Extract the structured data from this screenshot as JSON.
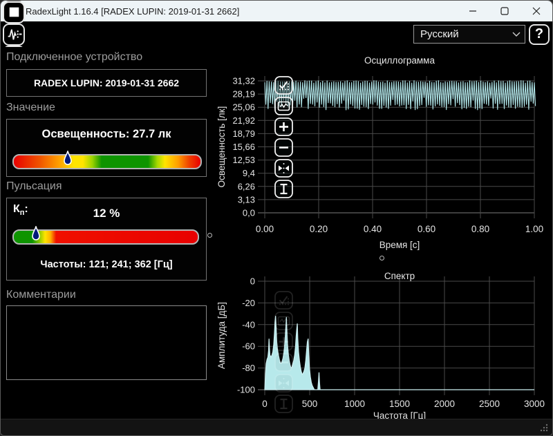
{
  "titlebar": {
    "title": "RadexLight 1.16.4 [RADEX LUPIN: 2019-01-31 2662]",
    "controls": [
      "minimize",
      "maximize",
      "close"
    ]
  },
  "toolbar": {
    "buttons": [
      {
        "name": "find-device",
        "enabled": false
      },
      {
        "name": "open-file",
        "enabled": true
      },
      {
        "name": "eject-device",
        "enabled": true
      },
      {
        "name": "save-file",
        "enabled": false
      },
      {
        "name": "stop-measure",
        "enabled": true
      },
      {
        "name": "pulse-measure",
        "enabled": true
      },
      {
        "name": "rays-mode",
        "enabled": true
      },
      {
        "name": "numeric-display",
        "enabled": true
      },
      {
        "name": "oscillogram-view",
        "enabled": true
      },
      {
        "name": "spectrum-view",
        "enabled": true
      },
      {
        "name": "layout-view",
        "enabled": true
      }
    ],
    "language_value": "Русский",
    "help_label": "?"
  },
  "left_panel": {
    "device": {
      "header": "Подключенное устройство",
      "name": "RADEX LUPIN: 2019-01-31 2662"
    },
    "value": {
      "header": "Значение",
      "reading": "Освещенность: 27.7 лк",
      "marker_pct": 29
    },
    "pulsation": {
      "header": "Пульсация",
      "kp_base": "К",
      "kp_sub": "п",
      "kp_colon": ":",
      "value": "12 %",
      "marker_pct": 12,
      "frequencies": "Частоты: 121; 241; 362 [Гц]"
    },
    "comments": {
      "header": "Комментарии",
      "text": ""
    }
  },
  "chart_tools": [
    "auto-scale",
    "fit-view",
    "zoom-in",
    "zoom-out",
    "fit-horizontal",
    "fit-vertical"
  ],
  "colors": {
    "wave": "#b2e7ea",
    "wave_fill": "#b7e9eb",
    "grid": "#4a4a4a",
    "axis_line": "#7d7d7d",
    "axis_text": "#e4e4e4",
    "titlebar_bg": "#eef4f7",
    "scale_green": "#0e9400",
    "scale_red": "#e80000",
    "marker_fill": "#001a7a"
  },
  "chart_data": [
    {
      "type": "line",
      "title": "Осциллограмма",
      "xlabel": "Время [с]",
      "ylabel": "Освещенность [лк]",
      "xlim": [
        0,
        1
      ],
      "ylim": [
        0,
        31.32
      ],
      "x_ticks": [
        "0.00",
        "0.20",
        "0.40",
        "0.60",
        "0.80",
        "1.00"
      ],
      "y_ticks": [
        "31,32",
        "28,19",
        "25,06",
        "21,92",
        "18,79",
        "15,66",
        "12,53",
        "9,4",
        "6,26",
        "3,13",
        "0,0"
      ],
      "grid": true,
      "signal": {
        "kind": "flicker",
        "cycles": 121,
        "top_min": 30.85,
        "top_max": 31.45,
        "bottom_min": 24.35,
        "bottom_max": 25.9,
        "shallow_chance": 0.18,
        "shallow_extra": 1.8
      }
    },
    {
      "type": "area",
      "title": "Спектр",
      "xlabel": "Частота [Гц]",
      "ylabel": "Амплитуда [дБ]",
      "xlim": [
        0,
        3000
      ],
      "ylim": [
        -100,
        0
      ],
      "x_ticks": [
        0,
        500,
        1000,
        1500,
        2000,
        2500,
        3000
      ],
      "y_ticks": [
        0,
        -20,
        -40,
        -60,
        -80,
        -100
      ],
      "grid": true,
      "points": [
        [
          0,
          -100
        ],
        [
          8,
          -86
        ],
        [
          15,
          -76
        ],
        [
          25,
          -72
        ],
        [
          35,
          -70
        ],
        [
          42,
          -64
        ],
        [
          48,
          -53
        ],
        [
          52,
          -61
        ],
        [
          58,
          -68
        ],
        [
          70,
          -70
        ],
        [
          80,
          -68
        ],
        [
          90,
          -65
        ],
        [
          100,
          -58
        ],
        [
          108,
          -48
        ],
        [
          114,
          -38
        ],
        [
          121,
          -32
        ],
        [
          128,
          -44
        ],
        [
          134,
          -56
        ],
        [
          142,
          -63
        ],
        [
          152,
          -68
        ],
        [
          162,
          -72
        ],
        [
          172,
          -75
        ],
        [
          182,
          -76
        ],
        [
          192,
          -74
        ],
        [
          202,
          -71
        ],
        [
          212,
          -66
        ],
        [
          222,
          -58
        ],
        [
          230,
          -48
        ],
        [
          236,
          -40
        ],
        [
          241,
          -33
        ],
        [
          247,
          -46
        ],
        [
          254,
          -58
        ],
        [
          262,
          -67
        ],
        [
          272,
          -73
        ],
        [
          282,
          -77
        ],
        [
          292,
          -80
        ],
        [
          302,
          -79
        ],
        [
          312,
          -76
        ],
        [
          322,
          -73
        ],
        [
          332,
          -68
        ],
        [
          342,
          -60
        ],
        [
          350,
          -50
        ],
        [
          356,
          -44
        ],
        [
          362,
          -39
        ],
        [
          368,
          -53
        ],
        [
          376,
          -65
        ],
        [
          386,
          -73
        ],
        [
          396,
          -79
        ],
        [
          406,
          -83
        ],
        [
          416,
          -86
        ],
        [
          426,
          -85
        ],
        [
          436,
          -83
        ],
        [
          446,
          -80
        ],
        [
          456,
          -73
        ],
        [
          466,
          -63
        ],
        [
          474,
          -56
        ],
        [
          483,
          -53
        ],
        [
          490,
          -68
        ],
        [
          498,
          -80
        ],
        [
          508,
          -88
        ],
        [
          518,
          -93
        ],
        [
          528,
          -96
        ],
        [
          540,
          -98
        ],
        [
          552,
          -100
        ],
        [
          590,
          -100
        ],
        [
          598,
          -92
        ],
        [
          604,
          -84
        ],
        [
          610,
          -94
        ],
        [
          616,
          -100
        ],
        [
          3000,
          -100
        ]
      ]
    }
  ]
}
